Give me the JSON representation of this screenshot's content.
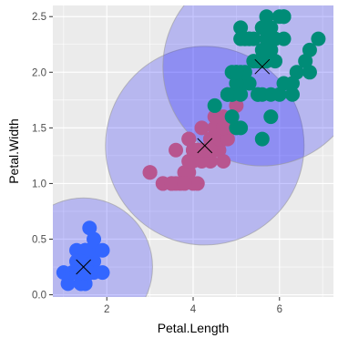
{
  "chart_data": {
    "type": "scatter",
    "title": "",
    "xlabel": "Petal.Length",
    "ylabel": "Petal.Width",
    "xlim": [
      0.75,
      7.25
    ],
    "ylim": [
      -0.02,
      2.6
    ],
    "x_ticks": [
      2,
      4,
      6
    ],
    "x_tick_labels": [
      "2",
      "4",
      "6"
    ],
    "y_ticks": [
      0.0,
      0.5,
      1.0,
      1.5,
      2.0,
      2.5
    ],
    "y_tick_labels": [
      "0.0",
      "0.5",
      "1.0",
      "1.5",
      "2.0",
      "2.5"
    ],
    "grid": true,
    "panel_background": "#ebebeb",
    "legend": "none",
    "series": [
      {
        "color": "#3366ff",
        "points": [
          [
            1.4,
            0.2
          ],
          [
            1.4,
            0.2
          ],
          [
            1.3,
            0.2
          ],
          [
            1.5,
            0.2
          ],
          [
            1.4,
            0.2
          ],
          [
            1.7,
            0.4
          ],
          [
            1.4,
            0.3
          ],
          [
            1.5,
            0.2
          ],
          [
            1.4,
            0.2
          ],
          [
            1.5,
            0.1
          ],
          [
            1.5,
            0.2
          ],
          [
            1.6,
            0.2
          ],
          [
            1.4,
            0.1
          ],
          [
            1.1,
            0.1
          ],
          [
            1.2,
            0.2
          ],
          [
            1.5,
            0.4
          ],
          [
            1.3,
            0.4
          ],
          [
            1.4,
            0.3
          ],
          [
            1.7,
            0.3
          ],
          [
            1.5,
            0.3
          ],
          [
            1.7,
            0.2
          ],
          [
            1.5,
            0.4
          ],
          [
            1.0,
            0.2
          ],
          [
            1.7,
            0.5
          ],
          [
            1.9,
            0.2
          ],
          [
            1.6,
            0.2
          ],
          [
            1.6,
            0.4
          ],
          [
            1.5,
            0.2
          ],
          [
            1.4,
            0.2
          ],
          [
            1.6,
            0.2
          ],
          [
            1.6,
            0.2
          ],
          [
            1.5,
            0.4
          ],
          [
            1.5,
            0.1
          ],
          [
            1.4,
            0.2
          ],
          [
            1.5,
            0.2
          ],
          [
            1.2,
            0.2
          ],
          [
            1.3,
            0.2
          ],
          [
            1.4,
            0.1
          ],
          [
            1.3,
            0.2
          ],
          [
            1.5,
            0.2
          ],
          [
            1.3,
            0.3
          ],
          [
            1.3,
            0.3
          ],
          [
            1.3,
            0.2
          ],
          [
            1.6,
            0.6
          ],
          [
            1.9,
            0.4
          ],
          [
            1.4,
            0.3
          ],
          [
            1.6,
            0.2
          ],
          [
            1.4,
            0.2
          ],
          [
            1.5,
            0.2
          ],
          [
            1.4,
            0.2
          ]
        ]
      },
      {
        "color": "#b8558f",
        "points": [
          [
            4.7,
            1.4
          ],
          [
            4.5,
            1.5
          ],
          [
            4.9,
            1.5
          ],
          [
            4.0,
            1.3
          ],
          [
            4.6,
            1.5
          ],
          [
            4.5,
            1.3
          ],
          [
            4.7,
            1.6
          ],
          [
            3.3,
            1.0
          ],
          [
            4.6,
            1.3
          ],
          [
            3.9,
            1.4
          ],
          [
            3.5,
            1.0
          ],
          [
            4.2,
            1.5
          ],
          [
            4.0,
            1.0
          ],
          [
            4.7,
            1.4
          ],
          [
            3.6,
            1.3
          ],
          [
            4.4,
            1.4
          ],
          [
            4.5,
            1.5
          ],
          [
            4.1,
            1.0
          ],
          [
            4.5,
            1.5
          ],
          [
            3.9,
            1.1
          ],
          [
            4.0,
            1.3
          ],
          [
            4.7,
            1.2
          ],
          [
            4.3,
            1.3
          ],
          [
            4.4,
            1.4
          ],
          [
            4.5,
            1.5
          ],
          [
            3.0,
            1.1
          ],
          [
            3.8,
            1.1
          ],
          [
            3.7,
            1.0
          ],
          [
            3.9,
            1.2
          ],
          [
            4.5,
            1.6
          ],
          [
            4.1,
            1.3
          ],
          [
            4.4,
            1.2
          ],
          [
            4.6,
            1.4
          ],
          [
            4.0,
            1.2
          ],
          [
            3.3,
            1.0
          ],
          [
            4.2,
            1.3
          ],
          [
            4.2,
            1.2
          ],
          [
            4.2,
            1.3
          ],
          [
            4.3,
            1.3
          ],
          [
            3.0,
            1.1
          ],
          [
            4.1,
            1.3
          ],
          [
            3.9,
            1.4
          ],
          [
            3.6,
            1.0
          ],
          [
            3.5,
            1.0
          ],
          [
            4.8,
            1.8
          ],
          [
            4.0,
            1.3
          ],
          [
            3.8,
            1.0
          ],
          [
            3.9,
            1.2
          ],
          [
            4.8,
            1.4
          ],
          [
            4.9,
            1.5
          ],
          [
            5.0,
            1.7
          ],
          [
            4.4,
            1.3
          ],
          [
            4.7,
            1.5
          ]
        ]
      },
      {
        "color": "#008c77",
        "points": [
          [
            6.0,
            2.5
          ],
          [
            5.1,
            1.9
          ],
          [
            5.9,
            2.1
          ],
          [
            5.6,
            1.8
          ],
          [
            5.8,
            2.2
          ],
          [
            6.6,
            2.1
          ],
          [
            4.5,
            1.7
          ],
          [
            6.3,
            1.8
          ],
          [
            5.8,
            1.8
          ],
          [
            6.1,
            2.5
          ],
          [
            5.1,
            2.0
          ],
          [
            5.3,
            1.9
          ],
          [
            5.5,
            2.1
          ],
          [
            5.0,
            2.0
          ],
          [
            5.1,
            2.4
          ],
          [
            5.3,
            2.3
          ],
          [
            5.5,
            1.8
          ],
          [
            6.7,
            2.2
          ],
          [
            6.9,
            2.3
          ],
          [
            5.0,
            1.5
          ],
          [
            5.7,
            2.3
          ],
          [
            4.9,
            2.0
          ],
          [
            6.7,
            2.0
          ],
          [
            4.9,
            1.8
          ],
          [
            5.7,
            2.1
          ],
          [
            6.0,
            1.8
          ],
          [
            4.8,
            1.8
          ],
          [
            4.9,
            1.8
          ],
          [
            5.6,
            2.1
          ],
          [
            5.8,
            1.6
          ],
          [
            6.1,
            1.9
          ],
          [
            6.4,
            2.0
          ],
          [
            5.6,
            2.2
          ],
          [
            5.1,
            1.5
          ],
          [
            5.6,
            1.4
          ],
          [
            6.1,
            2.3
          ],
          [
            5.6,
            2.4
          ],
          [
            5.5,
            1.8
          ],
          [
            4.8,
            1.8
          ],
          [
            5.4,
            2.1
          ],
          [
            5.6,
            2.4
          ],
          [
            5.1,
            2.3
          ],
          [
            5.9,
            2.3
          ],
          [
            5.7,
            2.5
          ],
          [
            5.2,
            2.3
          ],
          [
            5.0,
            1.9
          ],
          [
            5.2,
            2.0
          ],
          [
            5.4,
            2.3
          ],
          [
            5.1,
            1.8
          ],
          [
            4.9,
            1.6
          ],
          [
            5.0,
            2.0
          ],
          [
            5.8,
            2.4
          ],
          [
            6.1,
            2.5
          ],
          [
            5.2,
            2.3
          ],
          [
            5.3,
            2.3
          ],
          [
            5.7,
            2.2
          ],
          [
            6.3,
            1.9
          ]
        ]
      }
    ],
    "clusters": [
      {
        "center": [
          1.46,
          0.25
        ],
        "radius": 1.6,
        "fill": "#0000ff",
        "fill_opacity": 0.22
      },
      {
        "center": [
          4.27,
          1.34
        ],
        "radius": 2.3,
        "fill": "#0000ff",
        "fill_opacity": 0.22
      },
      {
        "center": [
          5.6,
          2.05
        ],
        "radius": 2.3,
        "fill": "#0000ff",
        "fill_opacity": 0.22
      }
    ],
    "center_marker": "x"
  }
}
